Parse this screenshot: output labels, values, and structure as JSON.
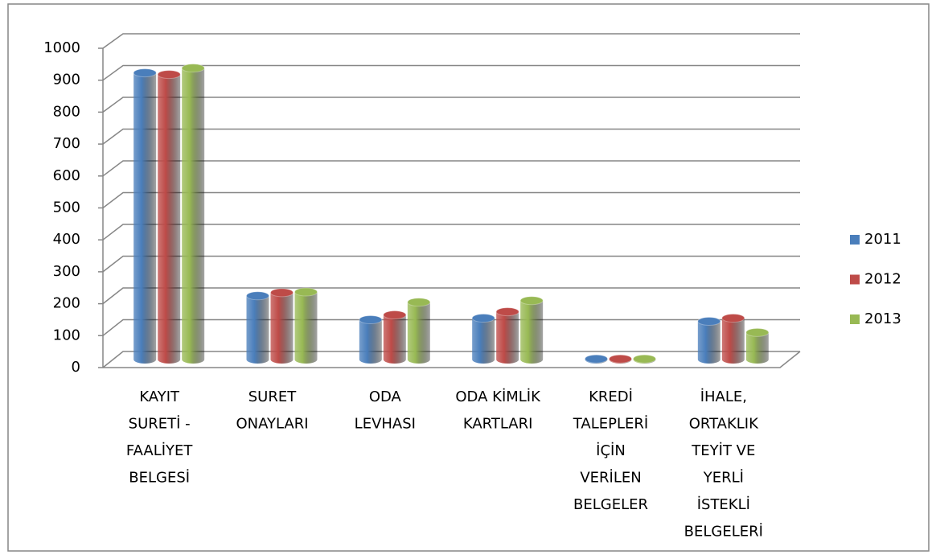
{
  "chart_data": {
    "type": "bar3d",
    "categories": [
      [
        "KAYIT",
        "SURETİ -",
        "FAALİYET",
        "BELGESİ"
      ],
      [
        "SURET",
        "ONAYLARI"
      ],
      [
        "ODA",
        "LEVHASI"
      ],
      [
        "ODA KİMLİK",
        "KARTLARI"
      ],
      [
        "KREDİ",
        "TALEPLERİ",
        "İÇİN",
        "VERİLEN",
        "BELGELER"
      ],
      [
        "İHALE,",
        "ORTAKLIK",
        "TEYİT VE",
        "YERLİ",
        "İSTEKLİ",
        "BELGELERİ"
      ]
    ],
    "series": [
      {
        "name": "2011",
        "color": "#4a7ebb",
        "values": [
          900,
          200,
          125,
          130,
          2,
          120
        ]
      },
      {
        "name": "2012",
        "color": "#be4b48",
        "values": [
          895,
          210,
          140,
          150,
          2,
          130
        ]
      },
      {
        "name": "2013",
        "color": "#98b954",
        "values": [
          915,
          212,
          180,
          185,
          2,
          85
        ]
      }
    ],
    "ylim": [
      0,
      1000
    ],
    "yticks": [
      0,
      100,
      200,
      300,
      400,
      500,
      600,
      700,
      800,
      900,
      1000
    ],
    "grid": true,
    "legend": "right"
  }
}
